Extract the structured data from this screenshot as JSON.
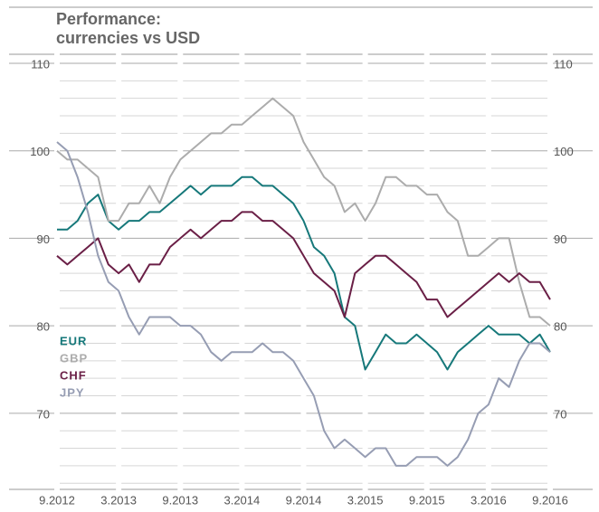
{
  "chart_data": {
    "type": "line",
    "title": [
      "Performance:",
      "currencies vs USD"
    ],
    "categories": [
      "9.2012",
      null,
      null,
      null,
      null,
      null,
      "3.2013",
      null,
      null,
      null,
      null,
      null,
      "9.2013",
      null,
      null,
      null,
      null,
      null,
      "3.2014",
      null,
      null,
      null,
      null,
      null,
      "9.2014",
      null,
      null,
      null,
      null,
      null,
      "3.2015",
      null,
      null,
      null,
      null,
      null,
      "9.2015",
      null,
      null,
      null,
      null,
      null,
      "3.2016",
      null,
      null,
      null,
      null,
      null,
      "9.2016"
    ],
    "series": [
      {
        "name": "EUR",
        "color": "#16787a",
        "values": [
          91,
          91,
          92,
          94,
          95,
          92,
          91,
          92,
          92,
          93,
          93,
          94,
          95,
          96,
          95,
          96,
          96,
          96,
          97,
          97,
          96,
          96,
          95,
          94,
          92,
          89,
          88,
          86,
          81,
          80,
          75,
          77,
          79,
          78,
          78,
          79,
          78,
          77,
          75,
          77,
          78,
          79,
          80,
          79,
          79,
          79,
          78,
          79,
          77
        ]
      },
      {
        "name": "GBP",
        "color": "#acacac",
        "values": [
          100,
          99,
          99,
          98,
          97,
          92,
          92,
          94,
          94,
          96,
          94,
          97,
          99,
          100,
          101,
          102,
          102,
          103,
          103,
          104,
          105,
          106,
          105,
          104,
          101,
          99,
          97,
          96,
          93,
          94,
          92,
          94,
          97,
          97,
          96,
          96,
          95,
          95,
          93,
          92,
          88,
          88,
          89,
          90,
          90,
          85,
          81,
          81,
          80
        ]
      },
      {
        "name": "CHF",
        "color": "#6a1f46",
        "values": [
          88,
          87,
          88,
          89,
          90,
          87,
          86,
          87,
          85,
          87,
          87,
          89,
          90,
          91,
          90,
          91,
          92,
          92,
          93,
          93,
          92,
          92,
          91,
          90,
          88,
          86,
          85,
          84,
          81,
          86,
          87,
          88,
          88,
          87,
          86,
          85,
          83,
          83,
          81,
          82,
          83,
          84,
          85,
          86,
          85,
          86,
          85,
          85,
          83
        ]
      },
      {
        "name": "JPY",
        "color": "#969db3",
        "values": [
          101,
          100,
          97,
          93,
          88,
          85,
          84,
          81,
          79,
          81,
          81,
          81,
          80,
          80,
          79,
          77,
          76,
          77,
          77,
          77,
          78,
          77,
          77,
          76,
          74,
          72,
          68,
          66,
          67,
          66,
          65,
          66,
          66,
          64,
          64,
          65,
          65,
          65,
          64,
          65,
          67,
          70,
          71,
          74,
          73,
          76,
          78,
          78,
          77
        ]
      }
    ],
    "ylim": [
      61.3,
      110
    ],
    "yticks": [
      70,
      80,
      90,
      100,
      110
    ],
    "minor_yticks": [
      62,
      64,
      66,
      68,
      72,
      74,
      76,
      78,
      82,
      84,
      86,
      88,
      92,
      94,
      96,
      98,
      102,
      104,
      106,
      108
    ],
    "grid": true
  }
}
